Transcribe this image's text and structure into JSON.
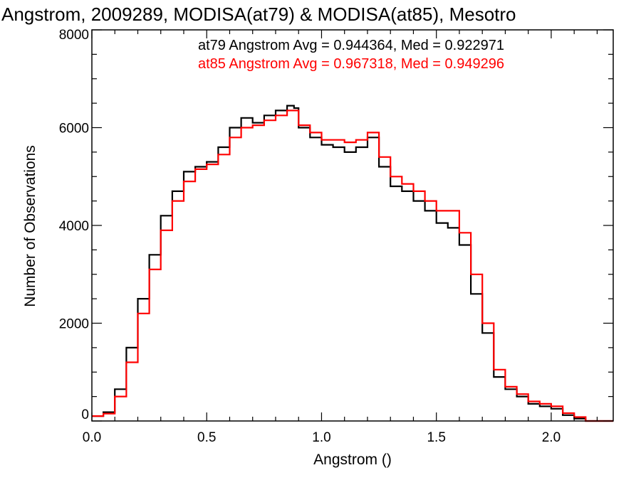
{
  "chart_data": {
    "type": "line",
    "title": "Angstrom, 2009289, MODISA(at79) & MODISA(at85), Mesotro",
    "xlabel": "Angstrom ()",
    "ylabel": "Number of Observations",
    "xlim": [
      0.0,
      2.27
    ],
    "ylim": [
      0,
      8000
    ],
    "x_ticks": [
      "0.0",
      "0.5",
      "1.0",
      "1.5",
      "2.0"
    ],
    "y_ticks": [
      "0",
      "2000",
      "4000",
      "6000",
      "8000"
    ],
    "x_tick_values": [
      0.0,
      0.5,
      1.0,
      1.5,
      2.0
    ],
    "y_tick_values": [
      0,
      2000,
      4000,
      6000,
      8000
    ],
    "grid": false,
    "legend_position": "top-right",
    "legend": [
      {
        "text": "at79 Angstrom Avg = 0.944364, Med = 0.922971",
        "color": "#000000"
      },
      {
        "text": "at85 Angstrom Avg = 0.967318, Med = 0.949296",
        "color": "#ff0000"
      }
    ],
    "series": [
      {
        "color": "#000000",
        "x": [
          0.0,
          0.05,
          0.1,
          0.15,
          0.2,
          0.25,
          0.3,
          0.35,
          0.4,
          0.45,
          0.5,
          0.55,
          0.6,
          0.65,
          0.7,
          0.75,
          0.8,
          0.85,
          0.88,
          0.9,
          0.95,
          1.0,
          1.05,
          1.1,
          1.15,
          1.2,
          1.25,
          1.3,
          1.35,
          1.4,
          1.45,
          1.5,
          1.55,
          1.6,
          1.65,
          1.7,
          1.75,
          1.8,
          1.85,
          1.9,
          1.95,
          2.0,
          2.05,
          2.1,
          2.15
        ],
        "y": [
          100,
          180,
          650,
          1500,
          2500,
          3400,
          4200,
          4700,
          5100,
          5200,
          5300,
          5600,
          6000,
          6200,
          6100,
          6250,
          6350,
          6450,
          6400,
          6000,
          5800,
          5650,
          5600,
          5500,
          5600,
          5800,
          5200,
          4800,
          4700,
          4500,
          4300,
          4050,
          3950,
          3600,
          2600,
          1800,
          900,
          650,
          500,
          350,
          300,
          250,
          120,
          50,
          0
        ]
      },
      {
        "color": "#ff0000",
        "x": [
          0.0,
          0.05,
          0.1,
          0.15,
          0.2,
          0.25,
          0.3,
          0.35,
          0.4,
          0.45,
          0.5,
          0.55,
          0.6,
          0.65,
          0.7,
          0.75,
          0.8,
          0.85,
          0.88,
          0.9,
          0.95,
          1.0,
          1.05,
          1.1,
          1.15,
          1.2,
          1.25,
          1.3,
          1.35,
          1.4,
          1.45,
          1.5,
          1.55,
          1.6,
          1.65,
          1.7,
          1.75,
          1.8,
          1.85,
          1.9,
          1.95,
          2.0,
          2.05,
          2.1,
          2.15
        ],
        "y": [
          100,
          150,
          500,
          1200,
          2200,
          3100,
          3900,
          4500,
          4900,
          5150,
          5250,
          5450,
          5800,
          6000,
          6050,
          6150,
          6250,
          6350,
          6350,
          6050,
          5900,
          5750,
          5750,
          5700,
          5750,
          5900,
          5400,
          5000,
          4850,
          4700,
          4500,
          4300,
          4300,
          3850,
          3000,
          2000,
          1050,
          700,
          550,
          400,
          350,
          300,
          160,
          80,
          0
        ]
      }
    ]
  }
}
